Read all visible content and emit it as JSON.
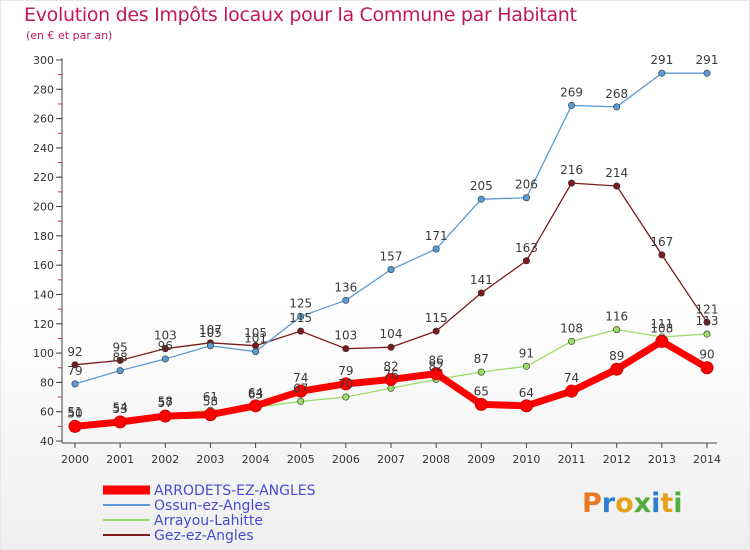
{
  "header": {
    "title": "Evolution des Impôts locaux pour la Commune par Habitant",
    "subtitle": "(en € et par an)"
  },
  "logo": {
    "text": "Proxiti"
  },
  "chart_data": {
    "type": "line",
    "title": "Evolution des Impôts locaux pour la Commune par Habitant",
    "subtitle": "(en € et par an)",
    "xlabel": "",
    "ylabel": "",
    "ylim": [
      40,
      300
    ],
    "yticks": [
      40,
      60,
      80,
      100,
      120,
      140,
      160,
      180,
      200,
      220,
      240,
      260,
      280,
      300
    ],
    "categories": [
      "2000",
      "2001",
      "2002",
      "2003",
      "2004",
      "2005",
      "2006",
      "2007",
      "2008",
      "2009",
      "2010",
      "2011",
      "2012",
      "2013",
      "2014"
    ],
    "grid": false,
    "legend_position": "bottom-left",
    "series": [
      {
        "name": "ARRODETS-EZ-ANGLES",
        "color": "#ff0000",
        "values": [
          50,
          53,
          57,
          58,
          64,
          74,
          79,
          82,
          86,
          65,
          64,
          74,
          89,
          108,
          90
        ],
        "labels": [
          "50",
          "53",
          "57",
          "58",
          "64",
          "74",
          "79",
          "82",
          "86",
          "65",
          "64",
          "74",
          "89",
          "108",
          "90"
        ]
      },
      {
        "name": "Ossun-ez-Angles",
        "color": "#5b9bd5",
        "values": [
          79,
          88,
          96,
          105,
          101,
          125,
          136,
          157,
          171,
          205,
          206,
          269,
          268,
          291,
          291
        ],
        "labels": [
          "79",
          "88",
          "96",
          "105",
          "101",
          "125",
          "136",
          "157",
          "171",
          "205",
          "206",
          "269",
          "268",
          "291",
          "291"
        ]
      },
      {
        "name": "Arrayou-Lahitte",
        "color": "#99dd66",
        "values": [
          51,
          54,
          58,
          61,
          63,
          67,
          70,
          76,
          82,
          87,
          91,
          108,
          116,
          111,
          113
        ],
        "labels": [
          "51",
          "54",
          "58",
          "61",
          "63",
          "67",
          "70",
          "76",
          "82",
          "87",
          "91",
          "108",
          "116",
          "111",
          "113"
        ]
      },
      {
        "name": "Gez-ez-Angles",
        "color": "#7b1c1c",
        "values": [
          92,
          95,
          103,
          107,
          105,
          115,
          103,
          104,
          115,
          141,
          163,
          216,
          214,
          167,
          121
        ],
        "labels": [
          "92",
          "95",
          "103",
          "107",
          "105",
          "115",
          "103",
          "104",
          "115",
          "141",
          "163",
          "216",
          "214",
          "167",
          "121"
        ]
      }
    ]
  }
}
